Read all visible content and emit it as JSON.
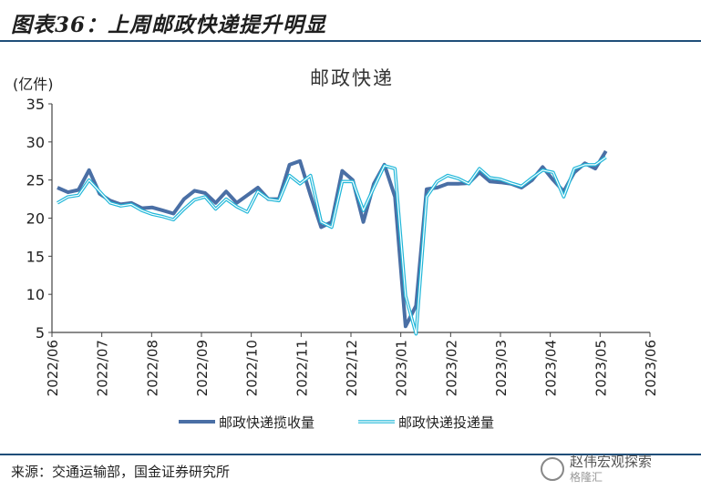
{
  "figure_title": "图表36：上周邮政快递提升明显",
  "source": "来源：交通运输部，国金证券研究所",
  "watermark": {
    "name": "赵伟宏观探索",
    "sub": "格隆汇"
  },
  "colors": {
    "series1": "#4a6fa5",
    "series2": "#1fb7d9",
    "rule": "#1f4e79"
  },
  "chart_data": {
    "type": "line",
    "title": "邮政快递",
    "ylabel": "(亿件)",
    "ylim": [
      5,
      35
    ],
    "yticks": [
      5,
      10,
      15,
      20,
      25,
      30,
      35
    ],
    "x_ticks": [
      "2022/06",
      "2022/07",
      "2022/08",
      "2022/09",
      "2022/10",
      "2022/11",
      "2022/12",
      "2023/01",
      "2023/02",
      "2023/03",
      "2023/04",
      "2023/05",
      "2023/06"
    ],
    "x_weeks": 56,
    "legend_position": "bottom",
    "series": [
      {
        "name": "邮政快递揽收量",
        "values": [
          24.0,
          23.4,
          23.7,
          26.3,
          23.2,
          22.3,
          21.8,
          22.0,
          21.3,
          21.4,
          21.0,
          20.6,
          22.5,
          23.6,
          23.3,
          22.0,
          23.5,
          22.0,
          23.0,
          24.0,
          22.5,
          22.5,
          27.0,
          27.5,
          23.0,
          18.8,
          19.5,
          26.2,
          25.0,
          19.5,
          24.5,
          27.0,
          22.8,
          5.8,
          8.5,
          23.8,
          24.0,
          24.5,
          24.5,
          24.6,
          26.0,
          24.8,
          24.7,
          24.5,
          24.0,
          25.0,
          26.7,
          25.0,
          23.5,
          26.0,
          27.2,
          26.5,
          28.8
        ]
      },
      {
        "name": "邮政快递投递量",
        "values": [
          22.0,
          22.8,
          23.0,
          25.0,
          23.5,
          22.0,
          21.6,
          21.8,
          21.0,
          20.5,
          20.2,
          19.8,
          21.2,
          22.4,
          22.8,
          21.2,
          22.5,
          21.5,
          20.8,
          23.5,
          22.5,
          22.3,
          25.6,
          24.5,
          25.6,
          19.5,
          18.8,
          24.8,
          24.8,
          21.0,
          24.0,
          26.9,
          26.5,
          9.8,
          4.8,
          22.8,
          24.8,
          25.6,
          25.2,
          24.5,
          26.5,
          25.3,
          25.1,
          24.6,
          24.2,
          25.3,
          26.3,
          26.0,
          22.8,
          26.5,
          27.0,
          27.0,
          28.0
        ]
      }
    ]
  }
}
